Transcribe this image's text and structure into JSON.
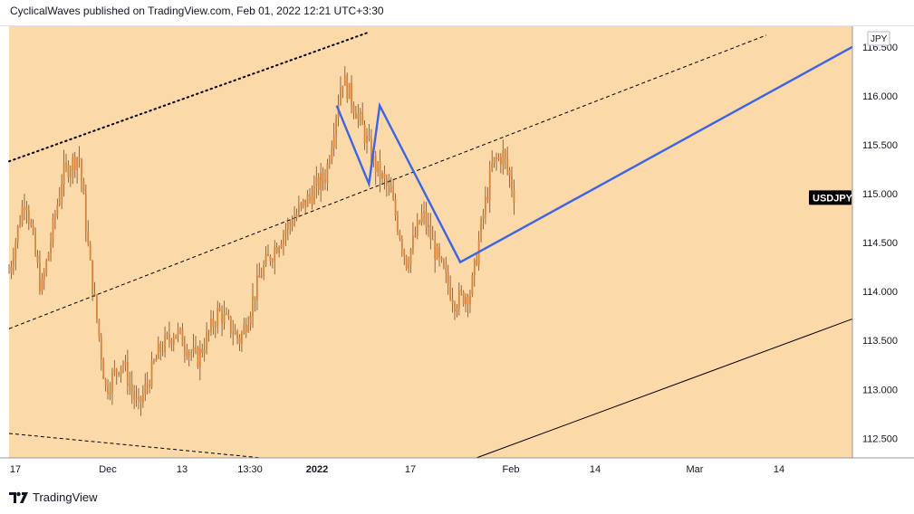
{
  "header": {
    "text": "CyclicalWaves published on TradingView.com, Feb 01, 2022 12:21 UTC+3:30"
  },
  "footer": {
    "brand": "TradingView",
    "logo_icon": "tradingview-logo-icon"
  },
  "colors": {
    "background": "#fcd9a8",
    "candle_body": "#d9843b",
    "candle_wick": "#7a4a2a",
    "wave": "#3d63e6",
    "axis_text": "#131722",
    "label_bg": "#000000"
  },
  "chart_data": {
    "type": "candlestick",
    "symbol_label": "USDJPY",
    "currency": "JPY",
    "x_ticks": [
      "17",
      "Dec",
      "13",
      "13:30",
      "2022",
      "17",
      "Feb",
      "14",
      "Mar",
      "14"
    ],
    "y_ticks": [
      "112.500",
      "113.000",
      "113.500",
      "114.000",
      "114.500",
      "115.000",
      "115.500",
      "116.000",
      "116.500"
    ],
    "ylim": [
      112.3,
      116.8
    ],
    "last_price": 114.95,
    "price_path": [
      {
        "t": 0,
        "price": 114.2
      },
      {
        "t": 3,
        "price": 115.0
      },
      {
        "t": 6,
        "price": 114.0
      },
      {
        "t": 10,
        "price": 115.2
      },
      {
        "t": 13,
        "price": 115.4
      },
      {
        "t": 15,
        "price": 114.3
      },
      {
        "t": 18,
        "price": 113.0
      },
      {
        "t": 21,
        "price": 113.3
      },
      {
        "t": 24,
        "price": 112.8
      },
      {
        "t": 28,
        "price": 113.4
      },
      {
        "t": 31,
        "price": 113.6
      },
      {
        "t": 35,
        "price": 113.3
      },
      {
        "t": 39,
        "price": 113.8
      },
      {
        "t": 43,
        "price": 113.5
      },
      {
        "t": 47,
        "price": 114.2
      },
      {
        "t": 51,
        "price": 114.6
      },
      {
        "t": 55,
        "price": 114.9
      },
      {
        "t": 59,
        "price": 115.2
      },
      {
        "t": 62,
        "price": 116.2
      },
      {
        "t": 65,
        "price": 115.8
      },
      {
        "t": 68,
        "price": 115.3
      },
      {
        "t": 71,
        "price": 115.0
      },
      {
        "t": 74,
        "price": 114.3
      },
      {
        "t": 77,
        "price": 114.8
      },
      {
        "t": 80,
        "price": 114.3
      },
      {
        "t": 83,
        "price": 113.9
      },
      {
        "t": 86,
        "price": 114.0
      },
      {
        "t": 88,
        "price": 114.7
      },
      {
        "t": 90,
        "price": 115.3
      },
      {
        "t": 92,
        "price": 115.4
      },
      {
        "t": 94,
        "price": 115.0
      }
    ],
    "wave_path": [
      {
        "t": 61,
        "price": 115.9
      },
      {
        "t": 67,
        "price": 115.1
      },
      {
        "t": 69,
        "price": 115.9
      },
      {
        "t": 84,
        "price": 114.3
      },
      {
        "t": 157,
        "price": 116.5
      }
    ],
    "channel_lines": [
      {
        "style": "dotted",
        "from": {
          "t": 0,
          "price": 115.33
        },
        "to": {
          "t": 67,
          "price": 116.65
        }
      },
      {
        "style": "dashed",
        "from": {
          "t": 0,
          "price": 113.62
        },
        "to": {
          "t": 141,
          "price": 116.62
        }
      },
      {
        "style": "dashed",
        "from": {
          "t": 0,
          "price": 112.55
        },
        "to": {
          "t": 47,
          "price": 112.3
        }
      },
      {
        "style": "solid",
        "from": {
          "t": 87,
          "price": 112.3
        },
        "to": {
          "t": 157,
          "price": 113.72
        }
      }
    ],
    "grid": false,
    "legend": "none"
  }
}
